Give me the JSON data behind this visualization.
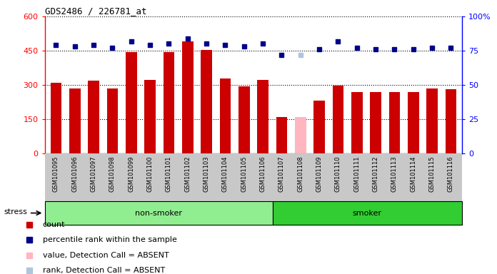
{
  "title": "GDS2486 / 226781_at",
  "samples": [
    "GSM101095",
    "GSM101096",
    "GSM101097",
    "GSM101098",
    "GSM101099",
    "GSM101100",
    "GSM101101",
    "GSM101102",
    "GSM101103",
    "GSM101104",
    "GSM101105",
    "GSM101106",
    "GSM101107",
    "GSM101108",
    "GSM101109",
    "GSM101110",
    "GSM101111",
    "GSM101112",
    "GSM101113",
    "GSM101114",
    "GSM101115",
    "GSM101116"
  ],
  "counts": [
    310,
    283,
    320,
    284,
    443,
    322,
    443,
    490,
    452,
    328,
    295,
    323,
    160,
    160,
    230,
    298,
    268,
    270,
    270,
    268,
    285,
    280
  ],
  "absent": [
    false,
    false,
    false,
    false,
    false,
    false,
    false,
    false,
    false,
    false,
    false,
    false,
    false,
    true,
    false,
    false,
    false,
    false,
    false,
    false,
    false,
    false
  ],
  "percentile_ranks": [
    79,
    78,
    79,
    77,
    82,
    79,
    80,
    84,
    80,
    79,
    78,
    80,
    72,
    72,
    76,
    82,
    77,
    76,
    76,
    76,
    77,
    77
  ],
  "rank_absent": [
    false,
    false,
    false,
    false,
    false,
    false,
    false,
    false,
    false,
    false,
    false,
    false,
    false,
    true,
    false,
    false,
    false,
    false,
    false,
    false,
    false,
    false
  ],
  "group_labels": [
    "non-smoker",
    "smoker"
  ],
  "group_boundaries": [
    0,
    12,
    22
  ],
  "group_colors": [
    "#90EE90",
    "#32CD32"
  ],
  "left_ylim": [
    0,
    600
  ],
  "right_ylim": [
    0,
    100
  ],
  "left_yticks": [
    0,
    150,
    300,
    450,
    600
  ],
  "right_yticks": [
    0,
    25,
    50,
    75,
    100
  ],
  "right_ytick_labels": [
    "0",
    "25",
    "50",
    "75",
    "100%"
  ],
  "bar_color_normal": "#CC0000",
  "bar_color_absent": "#FFB6C1",
  "dot_color_normal": "#00008B",
  "dot_color_absent": "#B0C4DE",
  "bg_color": "#C8C8C8",
  "stress_label": "stress",
  "legend_entries": [
    {
      "label": "count",
      "color": "#CC0000"
    },
    {
      "label": "percentile rank within the sample",
      "color": "#00008B"
    },
    {
      "label": "value, Detection Call = ABSENT",
      "color": "#FFB6C1"
    },
    {
      "label": "rank, Detection Call = ABSENT",
      "color": "#B0C4DE"
    }
  ]
}
